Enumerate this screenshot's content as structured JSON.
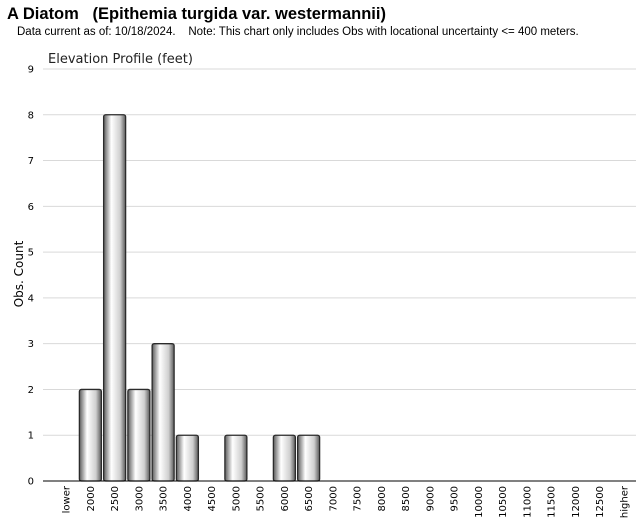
{
  "header": {
    "title": "A Diatom   (Epithemia turgida var. westermannii)",
    "subtitle": "Data current as of: 10/18/2024.    Note: This chart only includes Obs with locational uncertainty <= 400 meters."
  },
  "chart_data": {
    "type": "bar",
    "title": "Elevation Profile (feet)",
    "xlabel": "",
    "ylabel": "Obs. Count",
    "ylim": [
      0,
      9
    ],
    "yticks": [
      0,
      1,
      2,
      3,
      4,
      5,
      6,
      7,
      8,
      9
    ],
    "grid": true,
    "categories": [
      "lower",
      "2000",
      "2500",
      "3000",
      "3500",
      "4000",
      "4500",
      "5000",
      "5500",
      "6000",
      "6500",
      "7000",
      "7500",
      "8000",
      "8500",
      "9000",
      "9500",
      "10000",
      "10500",
      "11000",
      "11500",
      "12000",
      "12500",
      "higher"
    ],
    "values": [
      0,
      2,
      8,
      2,
      3,
      1,
      0,
      1,
      0,
      1,
      1,
      0,
      0,
      0,
      0,
      0,
      0,
      0,
      0,
      0,
      0,
      0,
      0,
      0
    ],
    "colors": {
      "bar_light": "#ffffff",
      "bar_mid": "#cfcfcf",
      "bar_dark": "#5a5a5a",
      "bar_stroke": "#2b2b2b",
      "grid": "#d9d9d9",
      "axis": "#000000"
    }
  }
}
